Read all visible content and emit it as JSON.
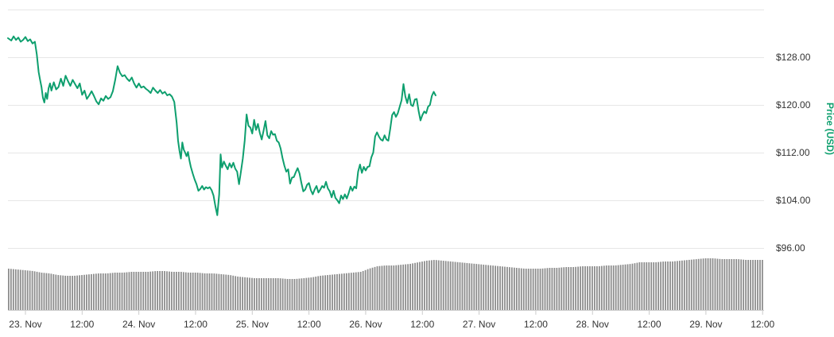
{
  "chart_data": {
    "type": "line",
    "ylabel": "Price (USD)",
    "yticks": [
      "$96.00",
      "$104.00",
      "$112.00",
      "$120.00",
      "$128.00"
    ],
    "ytick_values": [
      96,
      104,
      112,
      120,
      128
    ],
    "ylim": [
      96,
      136
    ],
    "xticks": [
      "23. Nov",
      "12:00",
      "24. Nov",
      "12:00",
      "25. Nov",
      "12:00",
      "26. Nov",
      "12:00",
      "27. Nov",
      "12:00",
      "28. Nov",
      "12:00",
      "29. Nov",
      "12:00"
    ],
    "xtick_hours": [
      0,
      12,
      24,
      36,
      48,
      60,
      72,
      84,
      96,
      108,
      120,
      132,
      144,
      156
    ],
    "xlim_hours": [
      -3.7,
      156.3
    ],
    "grid": true,
    "line_color": "#0e9f6e",
    "volume_color": "#8c8c8c",
    "series": [
      {
        "values": [
          [
            -3.7,
            131.2
          ],
          [
            -3.0,
            130.8
          ],
          [
            -2.5,
            131.5
          ],
          [
            -2.0,
            130.9
          ],
          [
            -1.5,
            131.3
          ],
          [
            -1.0,
            130.6
          ],
          [
            -0.5,
            130.9
          ],
          [
            0.0,
            131.4
          ],
          [
            0.5,
            130.7
          ],
          [
            1.0,
            131.0
          ],
          [
            1.5,
            130.3
          ],
          [
            2.0,
            130.6
          ],
          [
            2.4,
            128.5
          ],
          [
            2.8,
            125.5
          ],
          [
            3.1,
            124.2
          ],
          [
            3.4,
            123.0
          ],
          [
            3.7,
            121.2
          ],
          [
            4.0,
            120.4
          ],
          [
            4.3,
            122.0
          ],
          [
            4.6,
            121.0
          ],
          [
            4.9,
            122.8
          ],
          [
            5.2,
            123.6
          ],
          [
            5.5,
            122.4
          ],
          [
            6.0,
            123.8
          ],
          [
            6.5,
            122.6
          ],
          [
            7.0,
            123.0
          ],
          [
            7.5,
            124.4
          ],
          [
            8.0,
            123.2
          ],
          [
            8.5,
            124.9
          ],
          [
            9.0,
            124.0
          ],
          [
            9.5,
            123.2
          ],
          [
            10.0,
            124.2
          ],
          [
            10.5,
            123.5
          ],
          [
            11.0,
            122.8
          ],
          [
            11.5,
            123.6
          ],
          [
            12.0,
            121.7
          ],
          [
            12.5,
            122.4
          ],
          [
            13.0,
            121.0
          ],
          [
            13.5,
            121.6
          ],
          [
            14.0,
            122.3
          ],
          [
            14.5,
            121.5
          ],
          [
            15.0,
            120.6
          ],
          [
            15.5,
            120.1
          ],
          [
            16.0,
            121.1
          ],
          [
            16.5,
            120.7
          ],
          [
            17.0,
            121.5
          ],
          [
            17.5,
            121.0
          ],
          [
            18.0,
            121.3
          ],
          [
            18.5,
            122.3
          ],
          [
            19.0,
            124.2
          ],
          [
            19.5,
            126.5
          ],
          [
            20.0,
            125.4
          ],
          [
            20.5,
            124.8
          ],
          [
            21.0,
            125.0
          ],
          [
            21.5,
            124.4
          ],
          [
            22.0,
            124.0
          ],
          [
            22.5,
            124.6
          ],
          [
            23.0,
            123.6
          ],
          [
            23.5,
            122.9
          ],
          [
            24.0,
            123.6
          ],
          [
            24.5,
            122.9
          ],
          [
            25.0,
            123.1
          ],
          [
            25.5,
            122.7
          ],
          [
            26.0,
            122.4
          ],
          [
            26.5,
            122.0
          ],
          [
            27.0,
            122.9
          ],
          [
            27.5,
            122.4
          ],
          [
            28.0,
            122.0
          ],
          [
            28.5,
            122.5
          ],
          [
            29.0,
            121.9
          ],
          [
            29.5,
            122.2
          ],
          [
            30.0,
            121.6
          ],
          [
            30.5,
            121.8
          ],
          [
            31.0,
            121.4
          ],
          [
            31.5,
            120.5
          ],
          [
            32.0,
            117.0
          ],
          [
            32.3,
            114.0
          ],
          [
            32.6,
            112.3
          ],
          [
            32.9,
            111.0
          ],
          [
            33.2,
            113.7
          ],
          [
            33.5,
            112.5
          ],
          [
            33.8,
            112.0
          ],
          [
            34.1,
            111.4
          ],
          [
            34.4,
            112.1
          ],
          [
            34.7,
            110.7
          ],
          [
            35.0,
            109.6
          ],
          [
            35.4,
            108.5
          ],
          [
            35.8,
            107.5
          ],
          [
            36.2,
            106.7
          ],
          [
            36.6,
            105.6
          ],
          [
            37.0,
            105.9
          ],
          [
            37.4,
            106.4
          ],
          [
            37.8,
            105.8
          ],
          [
            38.2,
            106.2
          ],
          [
            38.6,
            106.0
          ],
          [
            39.0,
            106.2
          ],
          [
            39.4,
            105.7
          ],
          [
            39.8,
            104.8
          ],
          [
            40.2,
            103.0
          ],
          [
            40.6,
            101.5
          ],
          [
            41.0,
            105.0
          ],
          [
            41.3,
            111.7
          ],
          [
            41.6,
            109.5
          ],
          [
            42.0,
            110.5
          ],
          [
            42.4,
            109.8
          ],
          [
            42.8,
            109.2
          ],
          [
            43.2,
            110.2
          ],
          [
            43.6,
            109.5
          ],
          [
            44.0,
            110.3
          ],
          [
            44.4,
            109.3
          ],
          [
            44.8,
            108.8
          ],
          [
            45.2,
            106.7
          ],
          [
            45.6,
            108.8
          ],
          [
            46.0,
            111.0
          ],
          [
            46.4,
            114.0
          ],
          [
            46.8,
            118.4
          ],
          [
            47.2,
            116.5
          ],
          [
            47.6,
            116.2
          ],
          [
            48.0,
            115.2
          ],
          [
            48.4,
            117.5
          ],
          [
            48.8,
            115.8
          ],
          [
            49.2,
            116.8
          ],
          [
            49.6,
            115.3
          ],
          [
            50.0,
            114.2
          ],
          [
            50.4,
            115.7
          ],
          [
            50.8,
            117.3
          ],
          [
            51.2,
            114.9
          ],
          [
            51.6,
            114.4
          ],
          [
            52.0,
            115.6
          ],
          [
            52.4,
            115.0
          ],
          [
            52.8,
            115.1
          ],
          [
            53.2,
            114.0
          ],
          [
            53.6,
            113.7
          ],
          [
            54.0,
            112.7
          ],
          [
            54.4,
            111.1
          ],
          [
            54.8,
            109.8
          ],
          [
            55.2,
            108.8
          ],
          [
            55.6,
            109.2
          ],
          [
            56.0,
            106.8
          ],
          [
            56.4,
            107.8
          ],
          [
            56.8,
            107.9
          ],
          [
            57.2,
            108.7
          ],
          [
            57.6,
            109.4
          ],
          [
            58.0,
            108.5
          ],
          [
            58.4,
            106.9
          ],
          [
            58.8,
            105.5
          ],
          [
            59.2,
            105.8
          ],
          [
            59.6,
            106.6
          ],
          [
            60.0,
            106.9
          ],
          [
            60.4,
            105.7
          ],
          [
            60.8,
            105.0
          ],
          [
            61.2,
            105.8
          ],
          [
            61.6,
            106.4
          ],
          [
            62.0,
            105.3
          ],
          [
            62.4,
            105.8
          ],
          [
            62.8,
            106.4
          ],
          [
            63.2,
            106.1
          ],
          [
            63.6,
            107.1
          ],
          [
            64.0,
            106.0
          ],
          [
            64.4,
            105.5
          ],
          [
            64.8,
            104.5
          ],
          [
            65.2,
            105.6
          ],
          [
            65.6,
            104.4
          ],
          [
            66.0,
            104.0
          ],
          [
            66.4,
            103.5
          ],
          [
            66.8,
            104.8
          ],
          [
            67.2,
            104.2
          ],
          [
            67.6,
            105.0
          ],
          [
            68.0,
            104.3
          ],
          [
            68.4,
            105.2
          ],
          [
            68.8,
            106.3
          ],
          [
            69.2,
            105.6
          ],
          [
            69.6,
            106.3
          ],
          [
            70.0,
            106.0
          ],
          [
            70.4,
            108.8
          ],
          [
            70.8,
            110.0
          ],
          [
            71.2,
            108.6
          ],
          [
            71.6,
            109.6
          ],
          [
            72.0,
            109.0
          ],
          [
            72.4,
            109.6
          ],
          [
            72.8,
            109.7
          ],
          [
            73.2,
            111.2
          ],
          [
            73.6,
            112.0
          ],
          [
            74.0,
            114.7
          ],
          [
            74.4,
            115.4
          ],
          [
            74.8,
            114.7
          ],
          [
            75.2,
            114.2
          ],
          [
            75.6,
            114.0
          ],
          [
            76.0,
            114.9
          ],
          [
            76.4,
            114.2
          ],
          [
            76.8,
            114.0
          ],
          [
            77.2,
            116.0
          ],
          [
            77.6,
            118.3
          ],
          [
            78.0,
            118.8
          ],
          [
            78.4,
            118.0
          ],
          [
            78.8,
            118.6
          ],
          [
            79.2,
            119.7
          ],
          [
            79.6,
            120.8
          ],
          [
            80.0,
            123.5
          ],
          [
            80.4,
            121.4
          ],
          [
            80.8,
            120.3
          ],
          [
            81.2,
            121.8
          ],
          [
            81.6,
            120.0
          ],
          [
            82.0,
            119.8
          ],
          [
            82.4,
            120.9
          ],
          [
            82.8,
            121.0
          ],
          [
            83.2,
            119.0
          ],
          [
            83.6,
            117.4
          ],
          [
            84.0,
            118.3
          ],
          [
            84.4,
            118.9
          ],
          [
            84.8,
            118.6
          ],
          [
            85.2,
            119.7
          ],
          [
            85.6,
            120.0
          ],
          [
            86.0,
            121.5
          ],
          [
            86.4,
            122.2
          ],
          [
            86.8,
            121.6
          ]
        ]
      }
    ],
    "volume": {
      "relative_values": [
        0.52,
        0.51,
        0.5,
        0.49,
        0.47,
        0.46,
        0.44,
        0.43,
        0.43,
        0.44,
        0.45,
        0.46,
        0.46,
        0.47,
        0.47,
        0.48,
        0.48,
        0.48,
        0.49,
        0.49,
        0.48,
        0.48,
        0.47,
        0.47,
        0.46,
        0.46,
        0.45,
        0.44,
        0.42,
        0.41,
        0.4,
        0.4,
        0.4,
        0.4,
        0.39,
        0.39,
        0.4,
        0.41,
        0.43,
        0.44,
        0.45,
        0.46,
        0.47,
        0.48,
        0.52,
        0.55,
        0.56,
        0.56,
        0.57,
        0.58,
        0.6,
        0.62,
        0.63,
        0.62,
        0.61,
        0.6,
        0.59,
        0.58,
        0.57,
        0.56,
        0.55,
        0.54,
        0.53,
        0.52,
        0.52,
        0.52,
        0.53,
        0.53,
        0.54,
        0.54,
        0.55,
        0.55,
        0.55,
        0.56,
        0.56,
        0.57,
        0.58,
        0.6,
        0.6,
        0.6,
        0.61,
        0.61,
        0.62,
        0.63,
        0.64,
        0.65,
        0.65,
        0.64,
        0.64,
        0.64,
        0.63,
        0.63,
        0.63
      ]
    }
  }
}
